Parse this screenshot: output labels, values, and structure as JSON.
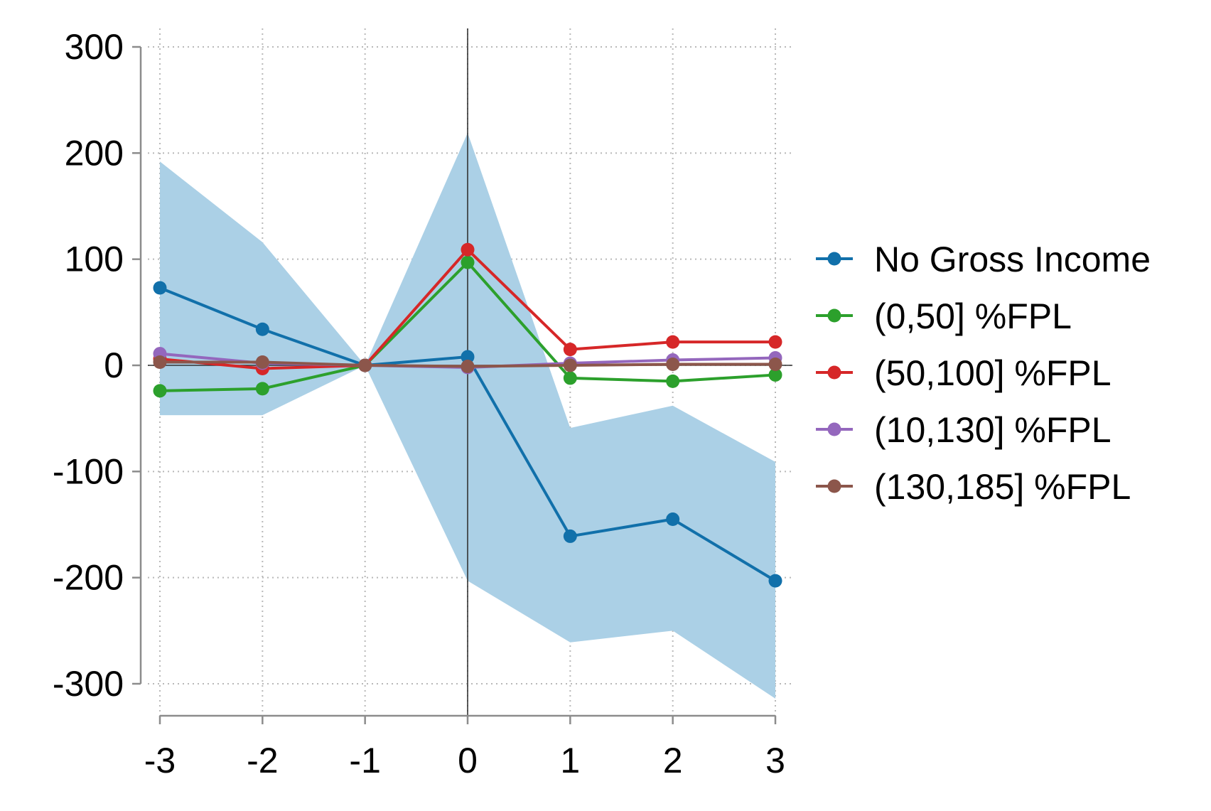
{
  "chart_data": {
    "type": "line",
    "title": "",
    "xlabel": "",
    "ylabel": "",
    "x": [
      -3,
      -2,
      -1,
      0,
      1,
      2,
      3
    ],
    "xlim": [
      -3,
      3
    ],
    "ylim": [
      -300,
      300
    ],
    "x_ticks": [
      "-3",
      "-2",
      "-1",
      "0",
      "1",
      "2",
      "3"
    ],
    "y_ticks": [
      "300",
      "200",
      "100",
      "0",
      "-100",
      "-200",
      "-300"
    ],
    "grid": true,
    "reference_lines": {
      "x": 0,
      "y": 0
    },
    "legend_position": "right",
    "confidence_band": {
      "series": "No Gross Income",
      "color": "#abd0e6",
      "lower": [
        -47,
        -47,
        0,
        -203,
        -261,
        -250,
        -314
      ],
      "upper": [
        192,
        116,
        0,
        219,
        -59,
        -38,
        -91
      ]
    },
    "series": [
      {
        "name": "No Gross Income",
        "color": "#1170aa",
        "values": [
          73,
          34,
          0,
          8,
          -161,
          -145,
          -203
        ]
      },
      {
        "name": "(0,50] %FPL",
        "color": "#2ca02c",
        "values": [
          -24,
          -22,
          0,
          97,
          -12,
          -15,
          -9
        ]
      },
      {
        "name": "(50,100] %FPL",
        "color": "#d62728",
        "values": [
          6,
          -3,
          0,
          109,
          15,
          22,
          22
        ]
      },
      {
        "name": "(10,130] %FPL",
        "color": "#9467bd",
        "values": [
          11,
          2,
          0,
          -2,
          2,
          5,
          7
        ]
      },
      {
        "name": "(130,185] %FPL",
        "color": "#8c564b",
        "values": [
          3,
          3,
          0,
          -1,
          0,
          1,
          1
        ]
      }
    ]
  }
}
